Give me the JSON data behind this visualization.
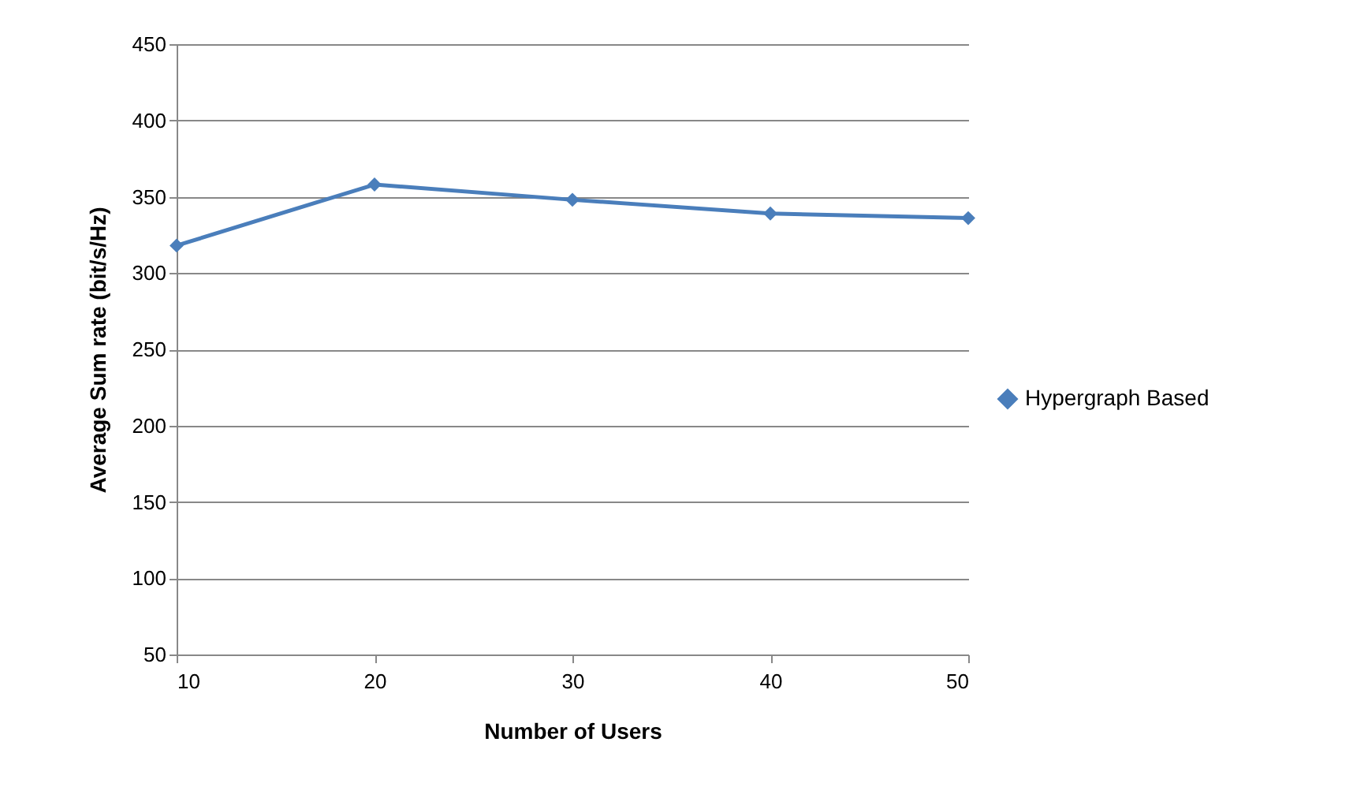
{
  "chart_data": {
    "type": "line",
    "xlabel": "Number of Users",
    "ylabel": "Average Sum rate (bit/s/Hz)",
    "x": [
      10,
      20,
      30,
      40,
      50
    ],
    "series": [
      {
        "name": "Hypergraph Based",
        "color": "#4a7ebb",
        "values": [
          318,
          358,
          348,
          339,
          336
        ]
      }
    ],
    "xlim": [
      10,
      50
    ],
    "xticks": [
      10,
      20,
      30,
      40,
      50
    ],
    "ylim": [
      50,
      450
    ],
    "yticks": [
      50,
      100,
      150,
      200,
      250,
      300,
      350,
      400,
      450
    ],
    "grid": "y",
    "legend": "right",
    "marker": "diamond",
    "line_style": "solid"
  }
}
